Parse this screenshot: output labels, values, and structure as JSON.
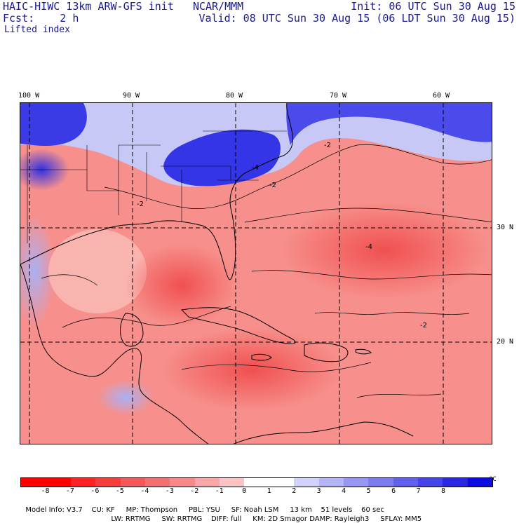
{
  "header": {
    "model": "HAIC-HIWC 13km ARW-GFS init",
    "org": "NCAR/MMM",
    "fcst_label": "Fcst:",
    "fcst_value": "2 h",
    "variable": "Lifted index",
    "init": "Init: 06 UTC Sun 30 Aug 15",
    "valid": "Valid: 08 UTC Sun 30 Aug 15 (06 LDT Sun 30 Aug 15)"
  },
  "map": {
    "lon_labels": [
      "100 W",
      "90 W",
      "80 W",
      "70 W",
      "60 W"
    ],
    "lat_labels": [
      "30 N",
      "20 N"
    ],
    "contour_labels": [
      "-2",
      "-2",
      "-4",
      "-2",
      "-4",
      "-2"
    ]
  },
  "legend": {
    "ticks": [
      "-8",
      "-7",
      "-6",
      "-5",
      "-4",
      "-3",
      "-2",
      "-1",
      "0",
      "1",
      "2",
      "3",
      "4",
      "5",
      "6",
      "7",
      "8"
    ],
    "unit": "°C",
    "colors": [
      "#ff0000",
      "#ff2222",
      "#f73c3c",
      "#f55858",
      "#f57070",
      "#f78888",
      "#f9a6a6",
      "#fbc4c4",
      "#ffffff",
      "#d2d2ff",
      "#b4b4f8",
      "#9898f4",
      "#7c7cf0",
      "#6060ec",
      "#4444e8",
      "#2828e4",
      "#0c0ce0"
    ]
  },
  "model_info": {
    "line1": [
      "Model Info: V3.7",
      "CU: KF",
      "MP: Thompson",
      "PBL: YSU",
      "SF: Noah LSM",
      "13 km",
      "51 levels",
      "60 sec"
    ],
    "line2": [
      "LW: RRTMG",
      "SW: RRTMG",
      "DIFF: full",
      "KM: 2D Smagor",
      "DAMP: Rayleigh3",
      "SFLAY: MM5"
    ]
  }
}
